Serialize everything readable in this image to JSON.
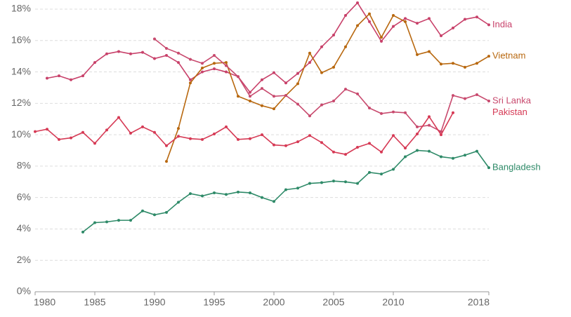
{
  "chart_data": {
    "type": "line",
    "x": [
      1980,
      1981,
      1982,
      1983,
      1984,
      1985,
      1986,
      1987,
      1988,
      1989,
      1990,
      1991,
      1992,
      1993,
      1994,
      1995,
      1996,
      1997,
      1998,
      1999,
      2000,
      2001,
      2002,
      2003,
      2004,
      2005,
      2006,
      2007,
      2008,
      2009,
      2010,
      2011,
      2012,
      2013,
      2014,
      2015,
      2016,
      2017,
      2018
    ],
    "xlim": [
      1980,
      2018
    ],
    "xticks": [
      1980,
      1985,
      1990,
      1995,
      2000,
      2005,
      2010,
      2018
    ],
    "ylim": [
      0,
      18
    ],
    "yticks": [
      {
        "value": 0,
        "label": "0%"
      },
      {
        "value": 2,
        "label": "2%"
      },
      {
        "value": 4,
        "label": "4%"
      },
      {
        "value": 6,
        "label": "6%"
      },
      {
        "value": 8,
        "label": "8%"
      },
      {
        "value": 10,
        "label": "10%"
      },
      {
        "value": 12,
        "label": "12%"
      },
      {
        "value": 14,
        "label": "14%"
      },
      {
        "value": 16,
        "label": "16%"
      },
      {
        "value": 18,
        "label": "18%"
      }
    ],
    "grid": true,
    "series": [
      {
        "name": "India",
        "color": "#c8416a",
        "values": [
          null,
          13.6,
          13.75,
          13.5,
          13.75,
          14.6,
          15.15,
          15.3,
          15.15,
          15.25,
          14.85,
          15.05,
          14.6,
          13.5,
          14.0,
          14.2,
          14.0,
          13.7,
          12.7,
          13.5,
          13.95,
          13.3,
          13.9,
          14.6,
          15.6,
          16.35,
          17.6,
          18.4,
          17.2,
          15.95,
          16.9,
          17.4,
          17.1,
          17.4,
          16.3,
          16.8,
          17.35,
          17.5,
          17.0
        ]
      },
      {
        "name": "Vietnam",
        "color": "#b8680f",
        "values": [
          null,
          null,
          null,
          null,
          null,
          null,
          null,
          null,
          null,
          null,
          null,
          8.3,
          10.4,
          13.3,
          14.25,
          14.55,
          14.6,
          12.45,
          12.15,
          11.85,
          11.65,
          12.5,
          13.25,
          15.2,
          13.95,
          14.3,
          15.6,
          16.95,
          17.7,
          16.2,
          17.6,
          17.2,
          15.1,
          15.3,
          14.5,
          14.55,
          14.3,
          14.55,
          15.0
        ]
      },
      {
        "name": "Sri Lanka",
        "color": "#c84a6e",
        "values": [
          null,
          null,
          null,
          null,
          null,
          null,
          null,
          null,
          null,
          null,
          16.1,
          15.5,
          15.2,
          14.8,
          14.55,
          15.05,
          14.4,
          13.7,
          12.45,
          12.95,
          12.45,
          12.5,
          11.95,
          11.2,
          11.9,
          12.15,
          12.9,
          12.6,
          11.7,
          11.35,
          11.45,
          11.4,
          10.5,
          10.6,
          10.2,
          12.5,
          12.3,
          12.55,
          12.15
        ]
      },
      {
        "name": "Pakistan",
        "color": "#d63a55",
        "values": [
          10.2,
          10.35,
          9.7,
          9.8,
          10.15,
          9.45,
          10.3,
          11.1,
          10.1,
          10.5,
          10.15,
          9.3,
          9.9,
          9.75,
          9.7,
          10.05,
          10.5,
          9.7,
          9.75,
          10.0,
          9.35,
          9.3,
          9.55,
          9.95,
          9.5,
          8.9,
          8.75,
          9.2,
          9.45,
          8.9,
          9.95,
          9.15,
          10.05,
          11.15,
          10.0,
          11.4,
          null,
          null,
          null
        ]
      },
      {
        "name": "Bangladesh",
        "color": "#2e8a68",
        "values": [
          null,
          null,
          null,
          null,
          3.8,
          4.4,
          4.45,
          4.55,
          4.55,
          5.15,
          4.9,
          5.05,
          5.7,
          6.25,
          6.1,
          6.3,
          6.2,
          6.35,
          6.3,
          6.0,
          5.75,
          6.5,
          6.6,
          6.9,
          6.95,
          7.05,
          7.0,
          6.9,
          7.6,
          7.5,
          7.8,
          8.6,
          9.0,
          8.95,
          8.6,
          8.5,
          8.7,
          8.95,
          7.9
        ]
      }
    ]
  }
}
